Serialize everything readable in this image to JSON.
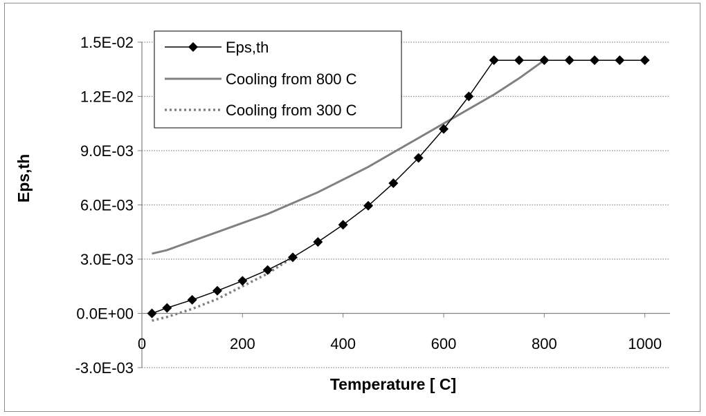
{
  "chart_data": {
    "type": "line",
    "xlabel": "Temperature [  C]",
    "ylabel": "Eps,th",
    "xlim": [
      0,
      1050
    ],
    "ylim": [
      -0.003,
      0.015
    ],
    "x_ticks": [
      0,
      200,
      400,
      600,
      800,
      1000
    ],
    "x_tick_labels": [
      "0",
      "200",
      "400",
      "600",
      "800",
      "1000"
    ],
    "y_ticks": [
      -0.003,
      0.0,
      0.003,
      0.006,
      0.009,
      0.012,
      0.015
    ],
    "y_tick_labels": [
      "-3.0E-03",
      "0.0E+00",
      "3.0E-03",
      "6.0E-03",
      "9.0E-03",
      "1.2E-02",
      "1.5E-02"
    ],
    "grid": "horizontal dotted",
    "legend_position": "top-left",
    "series": [
      {
        "name": "Eps,th",
        "style": "line-diamond",
        "color": "#000000",
        "x": [
          20,
          50,
          100,
          150,
          200,
          250,
          300,
          350,
          400,
          450,
          500,
          550,
          600,
          650,
          700,
          750,
          800,
          850,
          900,
          950,
          1000
        ],
        "y": [
          0.0,
          0.0003,
          0.00075,
          0.00125,
          0.0018,
          0.0024,
          0.0031,
          0.00395,
          0.0049,
          0.00595,
          0.0072,
          0.0086,
          0.0102,
          0.012,
          0.014,
          0.014,
          0.014,
          0.014,
          0.014,
          0.014,
          0.014
        ]
      },
      {
        "name": "Cooling from 800  C",
        "style": "solid",
        "color": "#808080",
        "x": [
          20,
          50,
          100,
          150,
          200,
          250,
          300,
          350,
          400,
          450,
          500,
          550,
          600,
          650,
          700,
          750,
          800
        ],
        "y": [
          0.0033,
          0.0035,
          0.004,
          0.0045,
          0.005,
          0.0055,
          0.0061,
          0.0067,
          0.0074,
          0.0081,
          0.0089,
          0.0097,
          0.0105,
          0.0113,
          0.0121,
          0.013,
          0.014
        ]
      },
      {
        "name": "Cooling from 300  C",
        "style": "dotted",
        "color": "#808080",
        "x": [
          20,
          50,
          100,
          150,
          200,
          250,
          300
        ],
        "y": [
          -0.0004,
          -0.0002,
          0.00025,
          0.0008,
          0.0015,
          0.0022,
          0.0031
        ]
      }
    ]
  }
}
